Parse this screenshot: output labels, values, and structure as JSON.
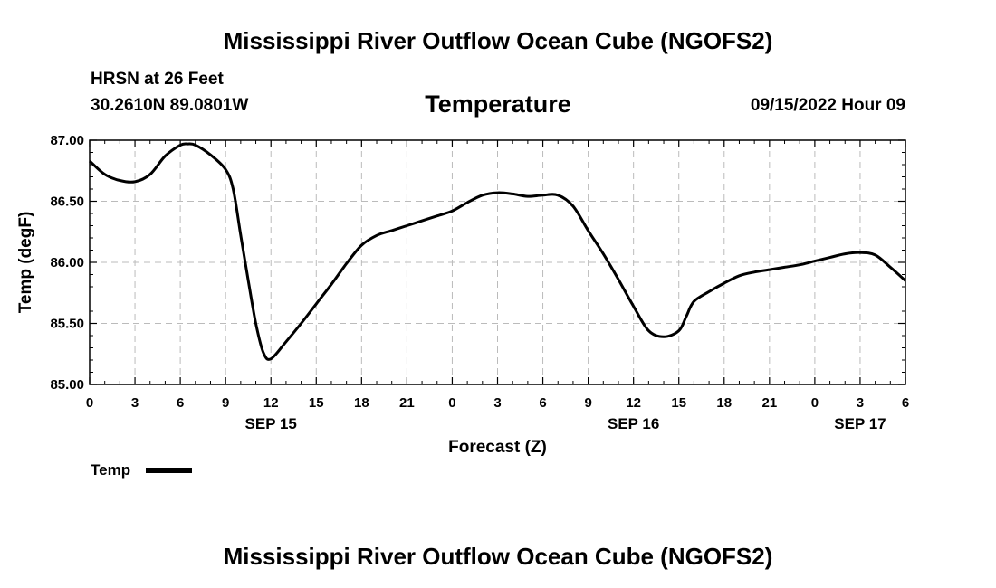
{
  "header": {
    "title": "Mississippi River Outflow Ocean Cube (NGOFS2)",
    "station": "HRSN at 26 Feet",
    "coords": "30.2610N  89.0801W",
    "variable": "Temperature",
    "datetime": "09/15/2022 Hour 09"
  },
  "footer": {
    "title": "Mississippi River Outflow Ocean Cube (NGOFS2)"
  },
  "legend": {
    "label": "Temp"
  },
  "chart_data": {
    "type": "line",
    "title": "Temperature",
    "xlabel": "Forecast (Z)",
    "ylabel": "Temp (degF)",
    "x_unit": "forecast hours from 00Z SEP 15",
    "xlim": [
      -12,
      42
    ],
    "ylim": [
      85.0,
      87.0
    ],
    "grid": true,
    "x_ticks": [
      -12,
      -9,
      -6,
      -3,
      0,
      3,
      6,
      9,
      12,
      15,
      18,
      21,
      24,
      27,
      30,
      33,
      36,
      39,
      42
    ],
    "x_tick_labels": [
      "0",
      "3",
      "6",
      "9",
      "12",
      "15",
      "18",
      "21",
      "0",
      "3",
      "6",
      "9",
      "12",
      "15",
      "18",
      "21",
      "0",
      "3",
      "6"
    ],
    "y_ticks": [
      85.0,
      85.5,
      86.0,
      86.5,
      87.0
    ],
    "y_tick_labels": [
      "85.00",
      "85.50",
      "86.00",
      "86.50",
      "87.00"
    ],
    "date_labels": [
      {
        "x": 0,
        "label": "SEP 15"
      },
      {
        "x": 24,
        "label": "SEP 16"
      },
      {
        "x": 39,
        "label": "SEP 17"
      }
    ],
    "series": [
      {
        "name": "Temp",
        "color": "#000000",
        "x": [
          -12,
          -11,
          -10,
          -9,
          -8,
          -7,
          -6,
          -5.5,
          -5,
          -4,
          -3,
          -2.5,
          -2,
          -1.5,
          -1,
          -0.5,
          0,
          1,
          2,
          3,
          4,
          5,
          6,
          7,
          8,
          9,
          10,
          11,
          12,
          13,
          14,
          15,
          16,
          17,
          18,
          19,
          20,
          21,
          22,
          23,
          24,
          25,
          26,
          27,
          27.5,
          28,
          29,
          30,
          31,
          32,
          33,
          34,
          35,
          36,
          37,
          38,
          39,
          40,
          41,
          42
        ],
        "y": [
          86.83,
          86.72,
          86.67,
          86.66,
          86.72,
          86.87,
          86.96,
          86.97,
          86.96,
          86.88,
          86.76,
          86.6,
          86.22,
          85.85,
          85.5,
          85.26,
          85.21,
          85.35,
          85.5,
          85.66,
          85.82,
          85.99,
          86.14,
          86.22,
          86.26,
          86.3,
          86.34,
          86.38,
          86.42,
          86.49,
          86.55,
          86.57,
          86.56,
          86.54,
          86.55,
          86.55,
          86.46,
          86.26,
          86.07,
          85.86,
          85.64,
          85.44,
          85.39,
          85.44,
          85.56,
          85.68,
          85.76,
          85.83,
          85.89,
          85.92,
          85.94,
          85.96,
          85.98,
          86.01,
          86.04,
          86.07,
          86.08,
          86.06,
          85.96,
          85.85
        ]
      }
    ]
  }
}
